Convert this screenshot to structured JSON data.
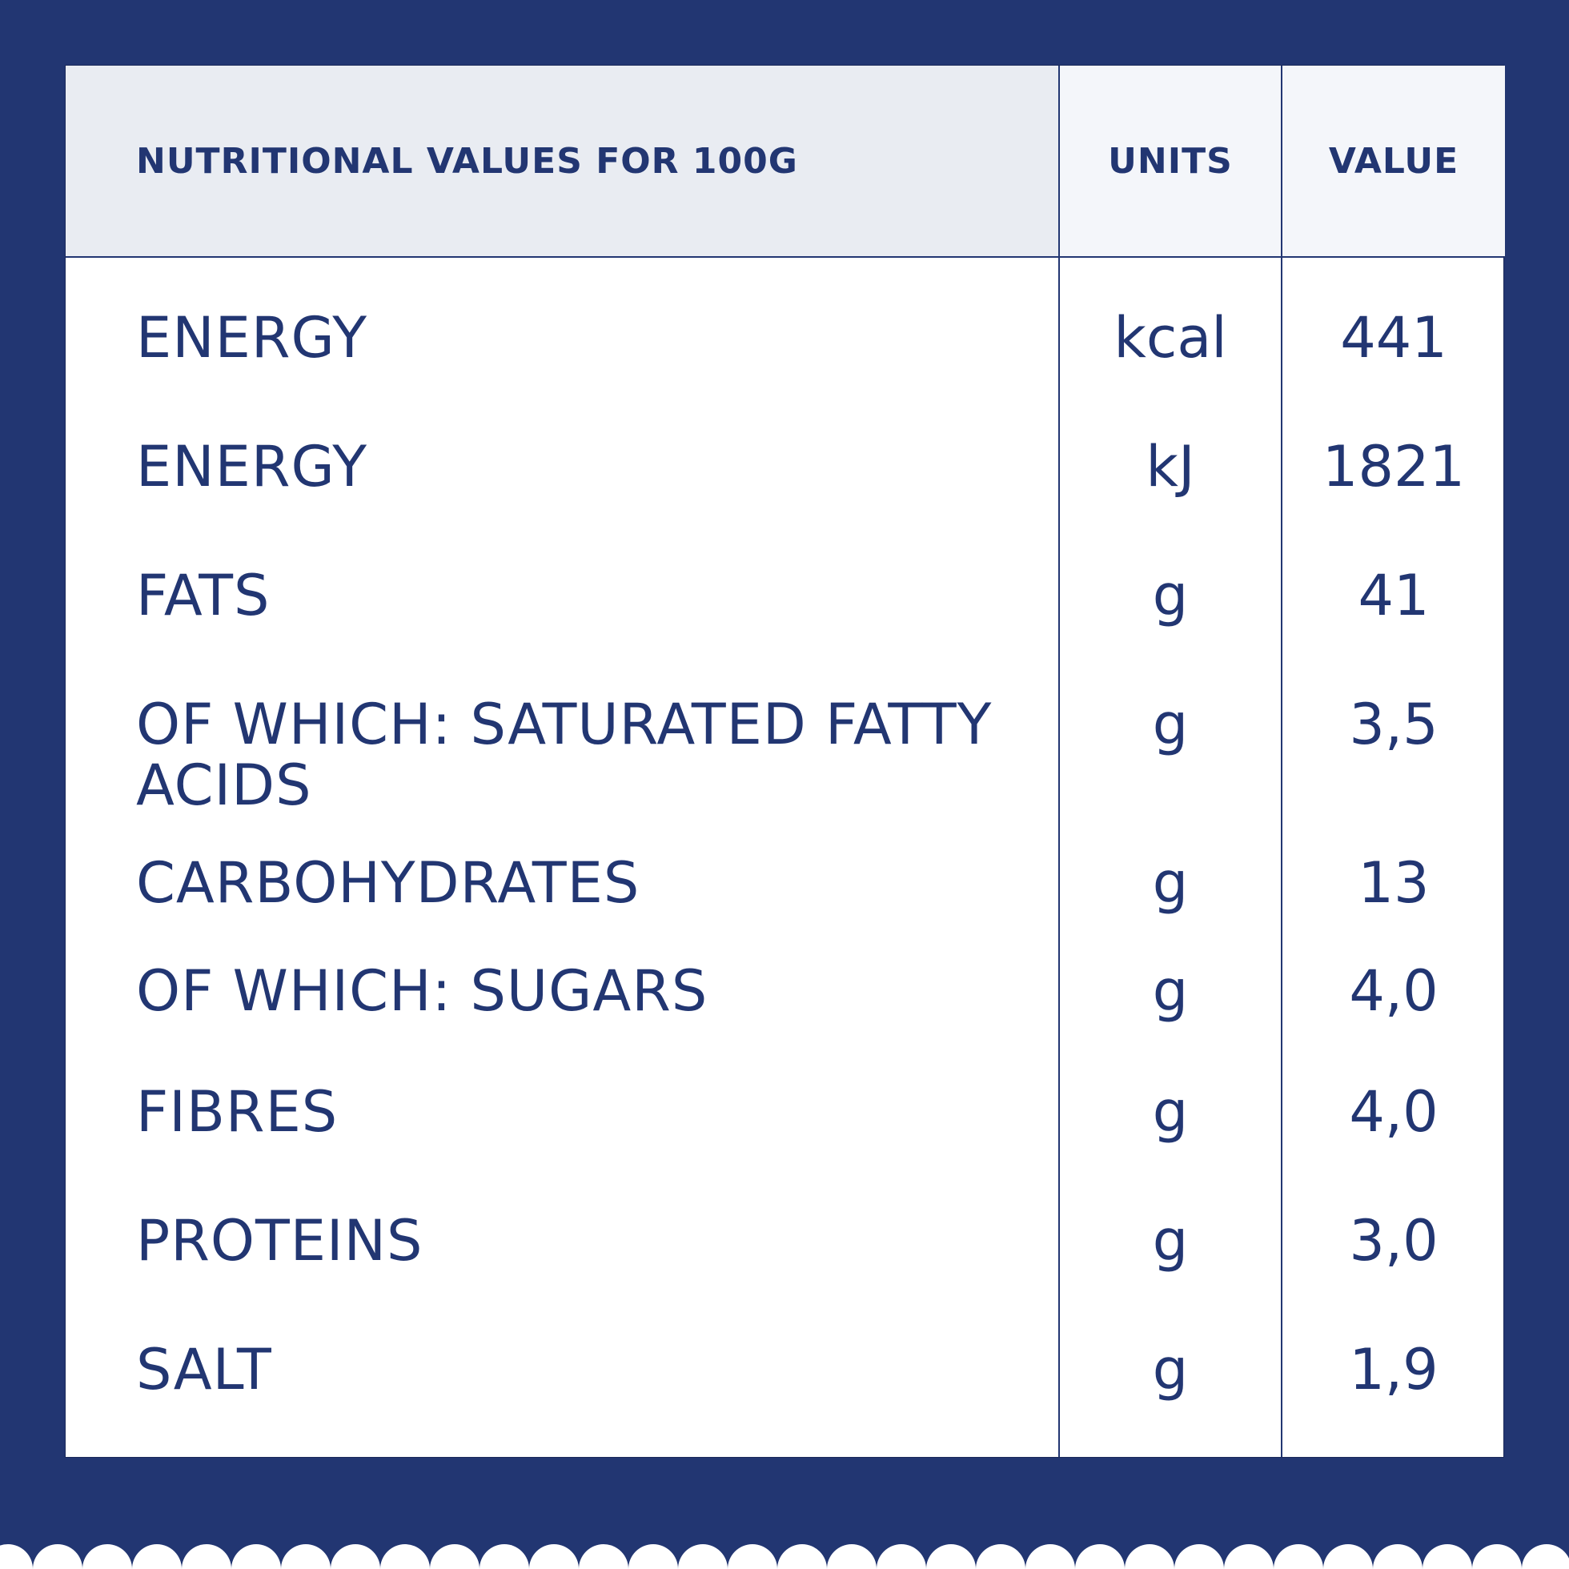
{
  "header": {
    "name_label": "NUTRITIONAL VALUES FOR 100G",
    "units_label": "UNITS",
    "value_label": "VALUE"
  },
  "rows": [
    {
      "name": "ENERGY",
      "unit": "kcal",
      "value": "441"
    },
    {
      "name": "ENERGY",
      "unit": "kJ",
      "value": "1821"
    },
    {
      "name": "FATS",
      "unit": "g",
      "value": "41"
    },
    {
      "name": "OF WHICH: SATURATED FATTY ACIDS",
      "unit": "g",
      "value": "3,5"
    },
    {
      "name": "CARBOHYDRATES",
      "unit": "g",
      "value": "13"
    },
    {
      "name": "OF WHICH: SUGARS",
      "unit": "g",
      "value": "4,0"
    },
    {
      "name": "FIBRES",
      "unit": "g",
      "value": "4,0"
    },
    {
      "name": "PROTEINS",
      "unit": "g",
      "value": "3,0"
    },
    {
      "name": "SALT",
      "unit": "g",
      "value": "1,9"
    }
  ],
  "colors": {
    "background": "#223672",
    "text": "#223672",
    "header_bg": "#e9ecf2",
    "panel": "#ffffff"
  }
}
